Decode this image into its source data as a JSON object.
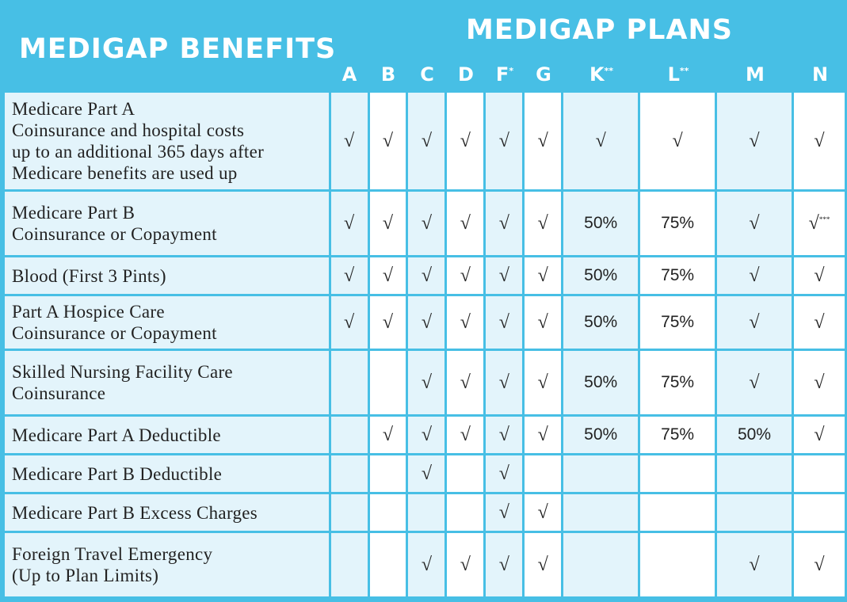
{
  "header": {
    "benefits_title": "MEDIGAP BENEFITS",
    "plans_title": "MEDIGAP PLANS",
    "plans": [
      {
        "letter": "A",
        "sup": ""
      },
      {
        "letter": "B",
        "sup": ""
      },
      {
        "letter": "C",
        "sup": ""
      },
      {
        "letter": "D",
        "sup": ""
      },
      {
        "letter": "F",
        "sup": "*"
      },
      {
        "letter": "G",
        "sup": ""
      },
      {
        "letter": "K",
        "sup": "**"
      },
      {
        "letter": "L",
        "sup": "**"
      },
      {
        "letter": "M",
        "sup": ""
      },
      {
        "letter": "N",
        "sup": ""
      }
    ]
  },
  "rows": [
    {
      "benefit": [
        "Medicare Part A",
        "Coinsurance and hospital costs",
        "up to an additional 365 days after",
        "Medicare benefits are used up"
      ],
      "cells": [
        "√",
        "√",
        "√",
        "√",
        "√",
        "√",
        "√",
        "√",
        "√",
        "√"
      ]
    },
    {
      "benefit": [
        "Medicare Part B",
        "Coinsurance or Copayment"
      ],
      "cells": [
        "√",
        "√",
        "√",
        "√",
        "√",
        "√",
        "50%",
        "75%",
        "√",
        "√***"
      ]
    },
    {
      "benefit": [
        "Blood (First 3 Pints)"
      ],
      "cells": [
        "√",
        "√",
        "√",
        "√",
        "√",
        "√",
        "50%",
        "75%",
        "√",
        "√"
      ]
    },
    {
      "benefit": [
        "Part A Hospice Care",
        "Coinsurance or Copayment"
      ],
      "cells": [
        "√",
        "√",
        "√",
        "√",
        "√",
        "√",
        "50%",
        "75%",
        "√",
        "√"
      ]
    },
    {
      "benefit": [
        "Skilled Nursing Facility Care",
        "Coinsurance"
      ],
      "cells": [
        "",
        "",
        "√",
        "√",
        "√",
        "√",
        "50%",
        "75%",
        "√",
        "√"
      ]
    },
    {
      "benefit": [
        "Medicare Part A Deductible"
      ],
      "cells": [
        "",
        "√",
        "√",
        "√",
        "√",
        "√",
        "50%",
        "75%",
        "50%",
        "√"
      ]
    },
    {
      "benefit": [
        "Medicare Part B Deductible"
      ],
      "cells": [
        "",
        "",
        "√",
        "",
        "√",
        "",
        "",
        "",
        "",
        ""
      ]
    },
    {
      "benefit": [
        "Medicare Part B Excess Charges"
      ],
      "cells": [
        "",
        "",
        "",
        "",
        "√",
        "√",
        "",
        "",
        "",
        ""
      ]
    },
    {
      "benefit": [
        "Foreign Travel Emergency",
        "(Up to Plan Limits)"
      ],
      "cells": [
        "",
        "",
        "√",
        "√",
        "√",
        "√",
        "",
        "",
        "√",
        "√"
      ]
    }
  ]
}
